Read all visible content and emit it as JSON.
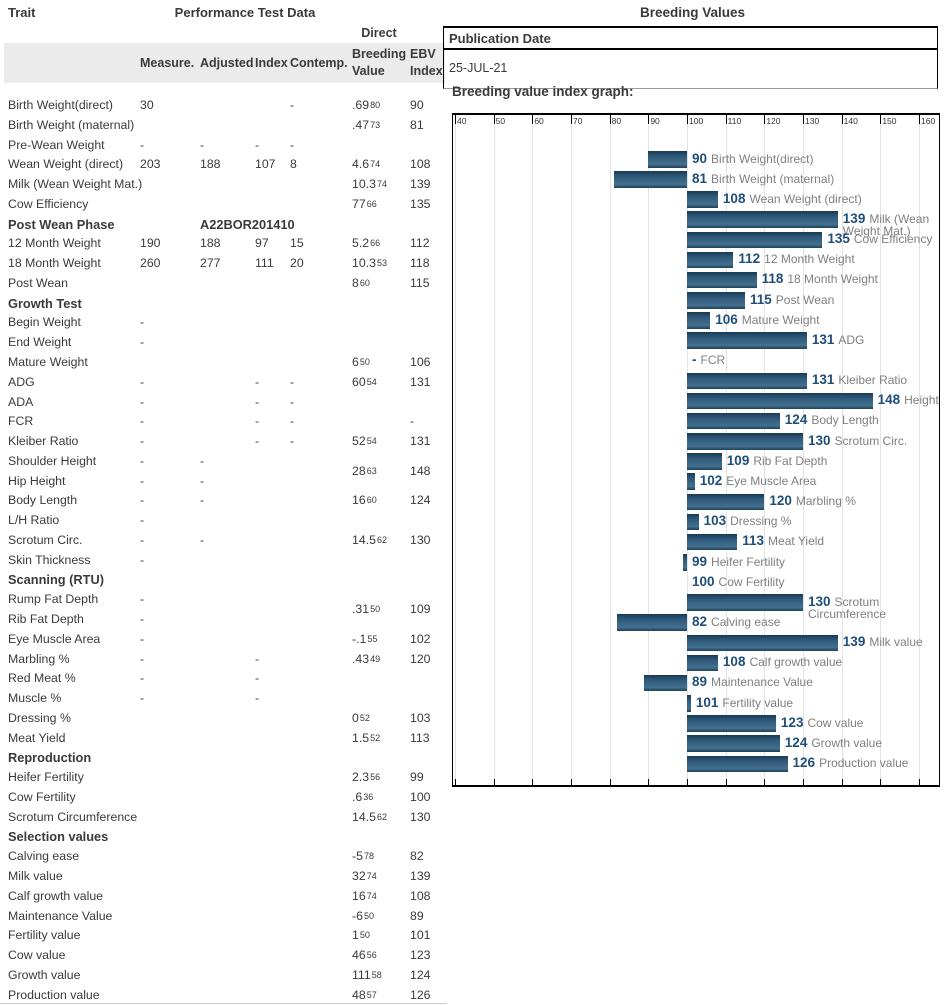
{
  "left_table": {
    "title": "Trait",
    "group_header": "Performance Test Data",
    "direct_header": "Direct",
    "columns": [
      "Measure.",
      "Adjusted",
      "Index",
      "Contemp."
    ],
    "dbv_header": [
      "Breeding",
      "Value"
    ],
    "ebv_header": [
      "EBV",
      "Index"
    ],
    "rows": [
      {
        "trait": "Birth Weight(direct)",
        "measure": "30",
        "contemp": "-",
        "dbv": ".69",
        "acc": "80",
        "ebv": "90"
      },
      {
        "trait": "Birth Weight (maternal)",
        "dbv": ".47",
        "acc": "73",
        "ebv": "81"
      },
      {
        "trait": "Pre-Wean Weight",
        "measure": "-",
        "adjusted": "-",
        "index": "-",
        "contemp": "-"
      },
      {
        "trait": "Wean Weight (direct)",
        "measure": "203",
        "adjusted": "188",
        "index": "107",
        "contemp": "8",
        "dbv": "4.6",
        "acc": "74",
        "ebv": "108"
      },
      {
        "trait": "Milk (Wean Weight Mat.)",
        "dbv": "10.3",
        "acc": "74",
        "ebv": "139"
      },
      {
        "trait": "Cow Efficiency",
        "dbv": "77",
        "acc": "66",
        "ebv": "135"
      },
      {
        "trait": "Post Wean Phase",
        "section": true,
        "adjusted": "A22BOR201410"
      },
      {
        "trait": "12 Month Weight",
        "measure": "190",
        "adjusted": "188",
        "index": "97",
        "contemp": "15",
        "dbv": "5.2",
        "acc": "66",
        "ebv": "112"
      },
      {
        "trait": "18 Month Weight",
        "measure": "260",
        "adjusted": "277",
        "index": "111",
        "contemp": "20",
        "dbv": "10.3",
        "acc": "53",
        "ebv": "118"
      },
      {
        "trait": "Post Wean",
        "dbv": "8",
        "acc": "60",
        "ebv": "115"
      },
      {
        "trait": "Growth Test",
        "section": true
      },
      {
        "trait": "Begin Weight",
        "measure": "-"
      },
      {
        "trait": "End Weight",
        "measure": "-"
      },
      {
        "trait": "Mature Weight",
        "dbv": "6",
        "acc": "50",
        "ebv": "106"
      },
      {
        "trait": "ADG",
        "measure": "-",
        "index": "-",
        "contemp": "-",
        "dbv": "60",
        "acc": "54",
        "ebv": "131"
      },
      {
        "trait": "ADA",
        "measure": "-",
        "index": "-",
        "contemp": "-"
      },
      {
        "trait": "FCR",
        "measure": "-",
        "index": "-",
        "contemp": "-",
        "ebv": "-"
      },
      {
        "trait": "Kleiber Ratio",
        "measure": "-",
        "index": "-",
        "contemp": "-",
        "dbv": "52",
        "acc": "54",
        "ebv": "131"
      },
      {
        "trait": "Shoulder Height",
        "measure": "-",
        "adjusted": "-",
        "dbv": "28",
        "acc": "63",
        "ebv": "148",
        "between": true
      },
      {
        "trait": "Hip Height",
        "measure": "-",
        "adjusted": "-"
      },
      {
        "trait": "Body Length",
        "measure": "-",
        "adjusted": "-",
        "dbv": "16",
        "acc": "60",
        "ebv": "124"
      },
      {
        "trait": "L/H Ratio",
        "measure": "-"
      },
      {
        "trait": "Scrotum Circ.",
        "measure": "-",
        "adjusted": "-",
        "dbv": "14.5",
        "acc": "62",
        "ebv": "130"
      },
      {
        "trait": "Skin Thickness",
        "measure": "-"
      },
      {
        "trait": "Scanning (RTU)",
        "section": true
      },
      {
        "trait": "Rump Fat Depth",
        "measure": "-",
        "dbv": ".31",
        "acc": "50",
        "ebv": "109",
        "between": true
      },
      {
        "trait": "Rib Fat Depth",
        "measure": "-"
      },
      {
        "trait": "Eye Muscle Area",
        "measure": "-",
        "dbv": "-.1",
        "acc": "55",
        "ebv": "102"
      },
      {
        "trait": "Marbling %",
        "measure": "-",
        "index": "-",
        "dbv": ".43",
        "acc": "49",
        "ebv": "120"
      },
      {
        "trait": "Red Meat %",
        "measure": "-",
        "index": "-"
      },
      {
        "trait": "Muscle %",
        "measure": "-",
        "index": "-"
      },
      {
        "trait": "Dressing %",
        "dbv": "0",
        "acc": "52",
        "ebv": "103"
      },
      {
        "trait": "Meat Yield",
        "dbv": "1.5",
        "acc": "52",
        "ebv": "113"
      },
      {
        "trait": "Reproduction",
        "section": true
      },
      {
        "trait": "Heifer Fertility",
        "dbv": "2.3",
        "acc": "56",
        "ebv": "99"
      },
      {
        "trait": "Cow Fertility",
        "dbv": ".6",
        "acc": "36",
        "ebv": "100"
      },
      {
        "trait": "Scrotum Circumference",
        "dbv": "14.5",
        "acc": "62",
        "ebv": "130"
      },
      {
        "trait": "Selection values",
        "section": true
      },
      {
        "trait": "Calving ease",
        "dbv": "-5",
        "acc": "78",
        "ebv": "82"
      },
      {
        "trait": "Milk value",
        "dbv": "32",
        "acc": "74",
        "ebv": "139"
      },
      {
        "trait": "Calf growth value",
        "dbv": "16",
        "acc": "74",
        "ebv": "108"
      },
      {
        "trait": "Maintenance Value",
        "dbv": "-6",
        "acc": "50",
        "ebv": "89"
      },
      {
        "trait": "Fertility value",
        "dbv": "1",
        "acc": "50",
        "ebv": "101"
      },
      {
        "trait": "Cow value",
        "dbv": "46",
        "acc": "56",
        "ebv": "123"
      },
      {
        "trait": "Growth value",
        "dbv": "111",
        "acc": "58",
        "ebv": "124"
      },
      {
        "trait": "Production value",
        "dbv": "48",
        "acc": "57",
        "ebv": "126"
      }
    ]
  },
  "right_panel": {
    "title": "Breeding Values",
    "publication_label": "Publication Date",
    "publication_date": "25-JUL-21",
    "graph_title": "Breeding value index graph:"
  },
  "chart_data": {
    "type": "bar",
    "orientation": "horizontal",
    "title": "Breeding value index graph",
    "xlim": [
      40,
      160
    ],
    "anchor": 100,
    "axis_ticks": [
      40,
      50,
      60,
      70,
      80,
      90,
      100,
      110,
      120,
      130,
      140,
      150,
      160
    ],
    "grid": true,
    "null_marker": "-",
    "bars": [
      {
        "value": 90,
        "label": "Birth Weight(direct)"
      },
      {
        "value": 81,
        "label": "Birth Weight (maternal)"
      },
      {
        "value": 108,
        "label": "Wean Weight (direct)"
      },
      {
        "value": 139,
        "label": "Milk (Wean Weight Mat.)"
      },
      {
        "value": 135,
        "label": "Cow Efficiency"
      },
      {
        "value": 112,
        "label": "12 Month Weight"
      },
      {
        "value": 118,
        "label": "18 Month Weight"
      },
      {
        "value": 115,
        "label": "Post Wean"
      },
      {
        "value": 106,
        "label": "Mature Weight"
      },
      {
        "value": 131,
        "label": "ADG"
      },
      {
        "value": null,
        "label": "FCR"
      },
      {
        "value": 131,
        "label": "Kleiber Ratio"
      },
      {
        "value": 148,
        "label": "Height"
      },
      {
        "value": 124,
        "label": "Body Length"
      },
      {
        "value": 130,
        "label": "Scrotum Circ."
      },
      {
        "value": 109,
        "label": "Rib Fat Depth"
      },
      {
        "value": 102,
        "label": "Eye Muscle Area"
      },
      {
        "value": 120,
        "label": "Marbling %"
      },
      {
        "value": 103,
        "label": "Dressing %"
      },
      {
        "value": 113,
        "label": "Meat Yield"
      },
      {
        "value": 99,
        "label": "Heifer Fertility"
      },
      {
        "value": 100,
        "label": "Cow Fertility"
      },
      {
        "value": 130,
        "label": "Scrotum Circumference"
      },
      {
        "value": 82,
        "label": "Calving ease"
      },
      {
        "value": 139,
        "label": "Milk value"
      },
      {
        "value": 108,
        "label": "Calf growth value"
      },
      {
        "value": 89,
        "label": "Maintenance Value"
      },
      {
        "value": 101,
        "label": "Fertility value"
      },
      {
        "value": 123,
        "label": "Cow value"
      },
      {
        "value": 124,
        "label": "Growth value"
      },
      {
        "value": 126,
        "label": "Production value"
      }
    ],
    "colors": {
      "bar_top": "#173a52",
      "bar_mid": "#44708f",
      "bar_bottom": "#1e4158",
      "value_number": "#1f4e79",
      "label_text": "#7f7f7f",
      "gridline": "#e3e3e3",
      "header_band": "#ebebeb"
    }
  }
}
